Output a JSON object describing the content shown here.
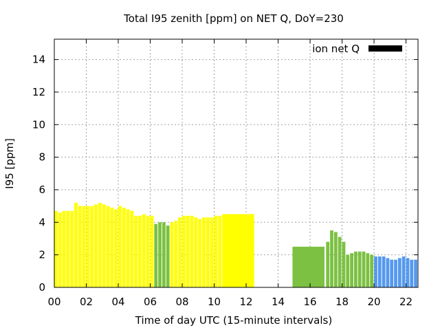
{
  "chart_data": {
    "type": "bar",
    "title": "Total I95 zenith [ppm] on NET Q, DoY=230",
    "xlabel": "Time of day UTC (15-minute intervals)",
    "ylabel": "I95 [ppm]",
    "xlim": [
      0,
      22.75
    ],
    "ylim": [
      0,
      15.25
    ],
    "x_ticks": [
      0,
      2,
      4,
      6,
      8,
      10,
      12,
      14,
      16,
      18,
      20,
      22
    ],
    "x_tick_labels": [
      "00",
      "02",
      "04",
      "06",
      "08",
      "10",
      "12",
      "14",
      "16",
      "18",
      "20",
      "22"
    ],
    "y_ticks": [
      0,
      2,
      4,
      6,
      8,
      10,
      12,
      14
    ],
    "grid": true,
    "legend": {
      "position": "top-right",
      "label": "ion net Q",
      "color": "#000000"
    },
    "bar_width_hours": 0.25,
    "colors": {
      "yellow": "#ffff00",
      "green": "#7cc142",
      "blue": "#5599ee",
      "axis": "#000000",
      "grid": "#a0a0a0"
    },
    "series": [
      {
        "color": "yellow",
        "x": [
          0.0,
          0.25,
          0.5,
          0.75,
          1.0,
          1.25,
          1.5,
          1.75,
          2.0,
          2.25,
          2.5,
          2.75,
          3.0,
          3.25,
          3.5,
          3.75,
          4.0,
          4.25,
          4.5,
          4.75,
          5.0,
          5.25,
          5.5,
          5.75,
          6.0
        ],
        "values": [
          4.7,
          4.6,
          4.7,
          4.7,
          4.7,
          5.2,
          5.0,
          5.0,
          5.0,
          5.0,
          5.1,
          5.2,
          5.1,
          5.0,
          4.9,
          4.8,
          5.0,
          4.9,
          4.8,
          4.7,
          4.4,
          4.4,
          4.5,
          4.4,
          4.4
        ]
      },
      {
        "color": "green",
        "x": [
          6.25,
          6.5,
          6.75,
          7.0
        ],
        "values": [
          3.9,
          4.0,
          4.0,
          3.8
        ]
      },
      {
        "color": "yellow",
        "x": [
          7.25,
          7.5,
          7.75,
          8.0,
          8.25,
          8.5,
          8.75,
          9.0,
          9.25,
          9.5,
          9.75,
          10.0,
          10.25
        ],
        "values": [
          4.0,
          4.1,
          4.3,
          4.4,
          4.4,
          4.4,
          4.3,
          4.2,
          4.3,
          4.3,
          4.3,
          4.4,
          4.4
        ]
      },
      {
        "color": "yellow",
        "x": [
          10.5
        ],
        "widths": [
          2.0
        ],
        "values": [
          4.5
        ]
      },
      {
        "color": "green",
        "x": [
          14.9
        ],
        "widths": [
          2.0
        ],
        "values": [
          2.5
        ]
      },
      {
        "color": "green",
        "x": [
          17.0,
          17.25,
          17.5,
          17.75,
          18.0,
          18.25,
          18.5,
          18.75,
          19.0,
          19.25,
          19.5,
          19.75
        ],
        "values": [
          2.8,
          3.5,
          3.4,
          3.1,
          2.8,
          2.0,
          2.1,
          2.2,
          2.2,
          2.2,
          2.1,
          2.0
        ]
      },
      {
        "color": "blue",
        "x": [
          20.0,
          20.25,
          20.5,
          20.75,
          21.0,
          21.25,
          21.5,
          21.75,
          22.0,
          22.25,
          22.5
        ],
        "values": [
          1.9,
          1.9,
          1.9,
          1.8,
          1.7,
          1.7,
          1.8,
          1.9,
          1.8,
          1.7,
          1.7
        ]
      }
    ]
  }
}
